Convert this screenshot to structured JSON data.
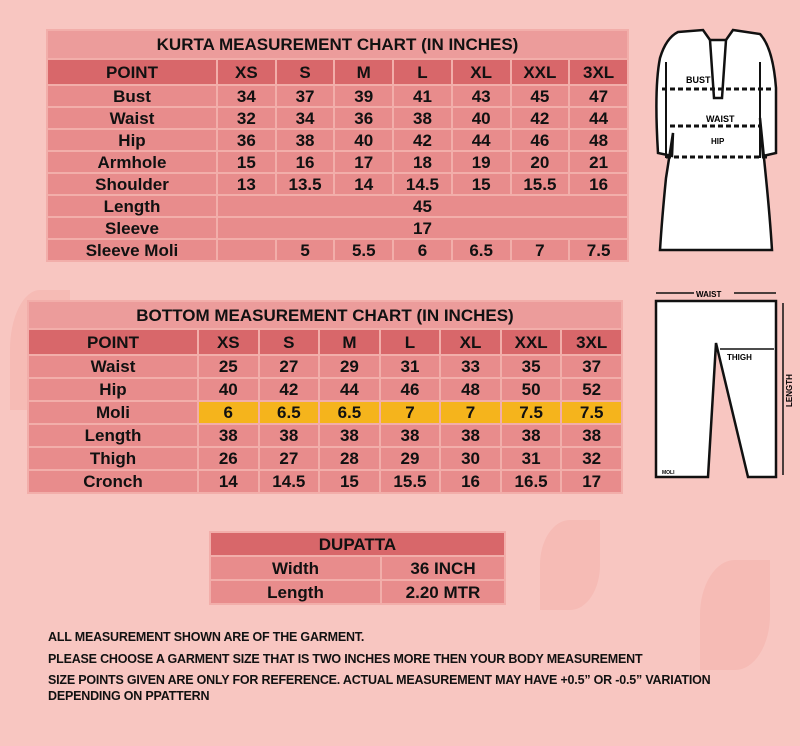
{
  "kurta": {
    "title": "KURTA MEASUREMENT CHART (IN INCHES)",
    "headers": [
      "POINT",
      "XS",
      "S",
      "M",
      "L",
      "XL",
      "XXL",
      "3XL"
    ],
    "rows": [
      {
        "point": "Bust",
        "values": [
          "34",
          "37",
          "39",
          "41",
          "43",
          "45",
          "47"
        ]
      },
      {
        "point": "Waist",
        "values": [
          "32",
          "34",
          "36",
          "38",
          "40",
          "42",
          "44"
        ]
      },
      {
        "point": "Hip",
        "values": [
          "36",
          "38",
          "40",
          "42",
          "44",
          "46",
          "48"
        ]
      },
      {
        "point": "Armhole",
        "values": [
          "15",
          "16",
          "17",
          "18",
          "19",
          "20",
          "21"
        ]
      },
      {
        "point": "Shoulder",
        "values": [
          "13",
          "13.5",
          "14",
          "14.5",
          "15",
          "15.5",
          "16"
        ]
      },
      {
        "point": "Length",
        "span": "45"
      },
      {
        "point": "Sleeve",
        "span": "17"
      },
      {
        "point": "Sleeve Moli",
        "values": [
          "",
          "5",
          "5.5",
          "6",
          "6.5",
          "7",
          "7.5"
        ]
      }
    ]
  },
  "bottom": {
    "title": "BOTTOM MEASUREMENT CHART (IN INCHES)",
    "headers": [
      "POINT",
      "XS",
      "S",
      "M",
      "L",
      "XL",
      "XXL",
      "3XL"
    ],
    "rows": [
      {
        "point": "Waist",
        "values": [
          "25",
          "27",
          "29",
          "31",
          "33",
          "35",
          "37"
        ]
      },
      {
        "point": "Hip",
        "values": [
          "40",
          "42",
          "44",
          "46",
          "48",
          "50",
          "52"
        ]
      },
      {
        "point": "Moli",
        "values": [
          "6",
          "6.5",
          "6.5",
          "7",
          "7",
          "7.5",
          "7.5"
        ],
        "highlight": true
      },
      {
        "point": "Length",
        "values": [
          "38",
          "38",
          "38",
          "38",
          "38",
          "38",
          "38"
        ]
      },
      {
        "point": "Thigh",
        "values": [
          "26",
          "27",
          "28",
          "29",
          "30",
          "31",
          "32"
        ]
      },
      {
        "point": "Cronch",
        "values": [
          "14",
          "14.5",
          "15",
          "15.5",
          "16",
          "16.5",
          "17"
        ]
      }
    ]
  },
  "dupatta": {
    "title": "DUPATTA",
    "rows": [
      {
        "point": "Width",
        "value": "36 INCH"
      },
      {
        "point": "Length",
        "value": "2.20 MTR"
      }
    ]
  },
  "kurta_figure": {
    "labels": {
      "bust": "BUST",
      "waist": "WAIST",
      "hip": "HIP"
    }
  },
  "bottom_figure": {
    "labels": {
      "waist": "WAIST",
      "thigh": "THIGH",
      "length": "LENGTH",
      "moli": "MOLI"
    }
  },
  "notes": [
    "ALL MEASUREMENT SHOWN ARE OF THE  GARMENT.",
    "PLEASE CHOOSE A GARMENT SIZE THAT IS TWO INCHES MORE THEN YOUR BODY MEASUREMENT",
    "SIZE POINTS GIVEN ARE ONLY FOR REFERENCE. ACTUAL MEASUREMENT MAY HAVE  +0.5” OR -0.5” VARIATION",
    "DEPENDING ON PPATTERN"
  ],
  "colors": {
    "background": "#f8c6c1",
    "cell": "#e88c8c",
    "header": "#d8676a",
    "highlight": "#f5b41c"
  }
}
